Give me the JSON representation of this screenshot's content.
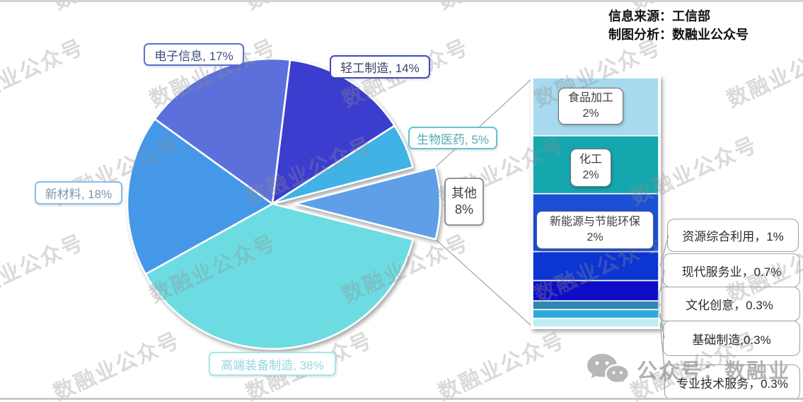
{
  "header": {
    "source": "信息来源：工信部",
    "credit": "制图分析：数融业公众号"
  },
  "watermark": {
    "text": "数融业公众号"
  },
  "footer": {
    "brand": "公众号：数融业"
  },
  "chart_data": {
    "type": "pie",
    "variant": "bar-of-pie",
    "unit": "%",
    "start_angle_deg": 7,
    "legend_position": "none",
    "pie_slices": [
      {
        "key": "light-industry",
        "name": "轻工制造",
        "value": 14,
        "label": "轻工制造, 14%",
        "color": "#3a3ecf",
        "label_border": "#4149c0",
        "label_text": "#3b4268"
      },
      {
        "key": "biomedicine",
        "name": "生物医药",
        "value": 5,
        "label": "生物医药, 5%",
        "color": "#41b2e5",
        "label_border": "#63c3da",
        "label_text": "#57a9b2"
      },
      {
        "key": "other",
        "name": "其他",
        "value": 8,
        "pct_label": "8%",
        "color": "#5f9fe8",
        "label_border": "#8f959d",
        "label_text": "#3f3f3f",
        "exploded": true
      },
      {
        "key": "high-end-equipment",
        "name": "高端装备制造",
        "value": 38,
        "label": "高端装备制造, 38%",
        "color": "#6cdce2",
        "label_border": "#a8e5e9",
        "label_text": "#93d8dc"
      },
      {
        "key": "new-materials",
        "name": "新材料",
        "value": 18,
        "label": "新材料, 18%",
        "color": "#4598e8",
        "label_border": "#86bce8",
        "label_text": "#7e95aa"
      },
      {
        "key": "electronics",
        "name": "电子信息",
        "value": 17,
        "label": "电子信息, 17%",
        "color": "#5c70dc",
        "label_border": "#5a71d2",
        "label_text": "#3f4c7e"
      }
    ],
    "other_breakdown": [
      {
        "key": "food-processing",
        "name": "食品加工",
        "value": 2,
        "pct_label": "2%",
        "color": "#a7daee"
      },
      {
        "key": "chemical",
        "name": "化工",
        "value": 2,
        "pct_label": "2%",
        "color": "#17a7ae"
      },
      {
        "key": "new-energy-env",
        "name": "新能源与节能环保",
        "value": 2,
        "pct_label": "2%",
        "color": "#1e51d6"
      },
      {
        "key": "resource-utilization",
        "name": "资源综合利用",
        "value": 1,
        "callout": "资源综合利用，1%",
        "color": "#1134d2"
      },
      {
        "key": "modern-services",
        "name": "现代服务业",
        "value": 0.7,
        "callout": "现代服务业，0.7%",
        "color": "#070dc6"
      },
      {
        "key": "cultural-creativity",
        "name": "文化创意",
        "value": 0.3,
        "callout": "文化创意，0.3%",
        "color": "#2f87af"
      },
      {
        "key": "basic-manufacturing",
        "name": "基础制造",
        "value": 0.3,
        "callout": "基础制造,0.3%",
        "color": "#2ba9da"
      },
      {
        "key": "professional-services",
        "name": "专业技术服务",
        "value": 0.3,
        "callout": "专业技术服务，0.3%",
        "color": "#bfedf3"
      }
    ]
  }
}
